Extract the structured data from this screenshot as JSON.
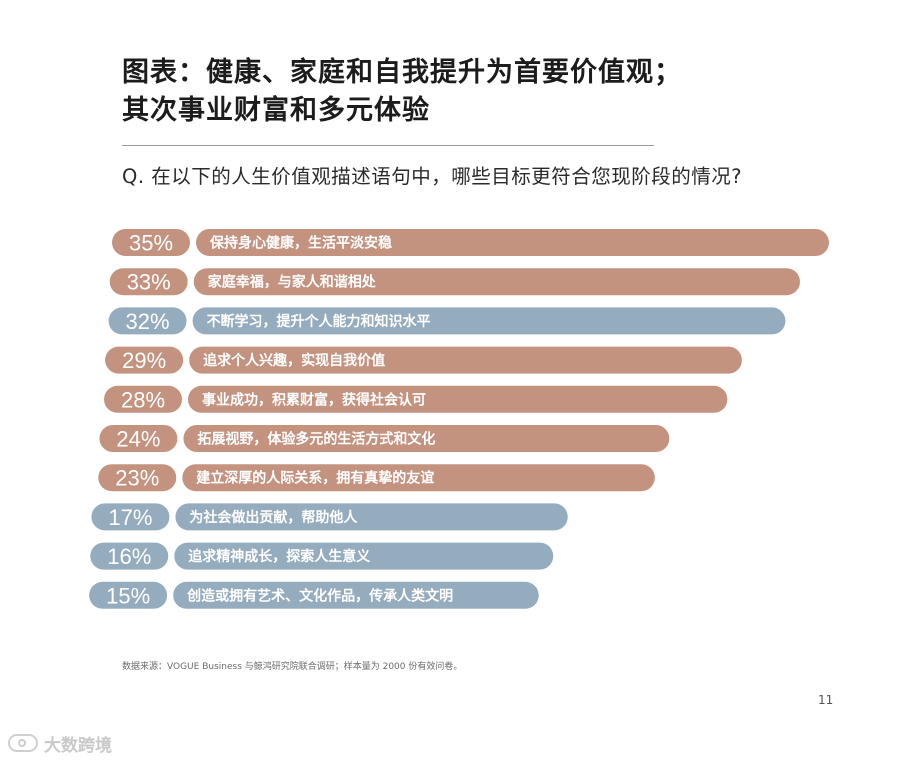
{
  "header": {
    "title_line1": "图表：健康、家庭和自我提升为首要价值观；",
    "title_line2": "其次事业财富和多元体验",
    "question": "Q. 在以下的人生价值观描述语句中，哪些目标更符合您现阶段的情况?"
  },
  "footer": {
    "source": "数据来源：VOGUE Business 与鲸鸿研究院联合调研；样本量为 2000 份有效问卷。",
    "page_number": "11",
    "watermark": "大数跨境"
  },
  "colors": {
    "terracotta": "#c49380",
    "blue": "#95acbf",
    "label_text": "#ffffff"
  },
  "chart_data": {
    "type": "bar",
    "orientation": "horizontal",
    "unit": "%",
    "categories": [
      "保持身心健康，生活平淡安稳",
      "家庭幸福，与家人和谐相处",
      "不断学习，提升个人能力和知识水平",
      "追求个人兴趣，实现自我价值",
      "事业成功，积累财富，获得社会认可",
      "拓展视野，体验多元的生活方式和文化",
      "建立深厚的人际关系，拥有真挚的友谊",
      "为社会做出贡献，帮助他人",
      "追求精神成长，探索人生意义",
      "创造或拥有艺术、文化作品，传承人类文明"
    ],
    "values": [
      35,
      33,
      32,
      29,
      28,
      24,
      23,
      17,
      16,
      15
    ],
    "value_labels": [
      "35%",
      "33%",
      "32%",
      "29%",
      "28%",
      "24%",
      "23%",
      "17%",
      "16%",
      "15%"
    ],
    "bar_colors": [
      "terracotta",
      "terracotta",
      "blue",
      "terracotta",
      "terracotta",
      "terracotta",
      "terracotta",
      "blue",
      "blue",
      "blue"
    ]
  }
}
